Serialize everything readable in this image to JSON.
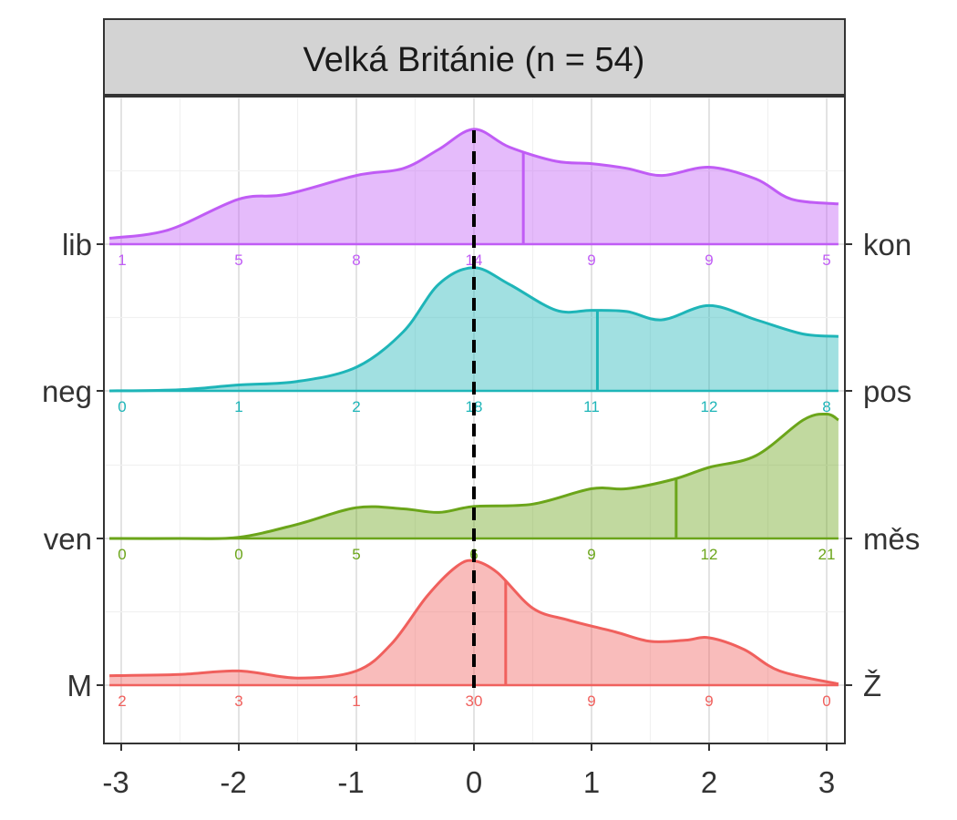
{
  "chart_data": {
    "type": "ridgeline-density",
    "title": "Velká Británie (n = 54)",
    "x_ticks": [
      -3,
      -2,
      -1,
      0,
      1,
      2,
      3
    ],
    "xlim": [
      -3.1,
      3.1
    ],
    "reference_line_x": 0,
    "series": [
      {
        "left_label": "M",
        "right_label": "Ž",
        "color": "#F0605D",
        "mean": 0.27,
        "counts": [
          {
            "x": -3,
            "n": "2"
          },
          {
            "x": -2,
            "n": "3"
          },
          {
            "x": -1,
            "n": "1"
          },
          {
            "x": 0,
            "n": "30"
          },
          {
            "x": 1,
            "n": "9"
          },
          {
            "x": 2,
            "n": "9"
          },
          {
            "x": 3,
            "n": "0"
          }
        ],
        "density": [
          [
            -3.1,
            0.08
          ],
          [
            -2.5,
            0.09
          ],
          [
            -2,
            0.12
          ],
          [
            -1.5,
            0.06
          ],
          [
            -1,
            0.12
          ],
          [
            -0.7,
            0.35
          ],
          [
            -0.4,
            0.75
          ],
          [
            -0.15,
            1.0
          ],
          [
            0,
            1.05
          ],
          [
            0.2,
            0.95
          ],
          [
            0.5,
            0.65
          ],
          [
            0.8,
            0.55
          ],
          [
            1.2,
            0.45
          ],
          [
            1.5,
            0.37
          ],
          [
            1.8,
            0.38
          ],
          [
            2,
            0.4
          ],
          [
            2.3,
            0.3
          ],
          [
            2.6,
            0.12
          ],
          [
            3.1,
            0.01
          ]
        ]
      },
      {
        "left_label": "ven",
        "right_label": "měs",
        "color": "#6BA51A",
        "mean": 1.72,
        "counts": [
          {
            "x": -3,
            "n": "0"
          },
          {
            "x": -2,
            "n": "0"
          },
          {
            "x": -1,
            "n": "5"
          },
          {
            "x": 0,
            "n": "6"
          },
          {
            "x": 1,
            "n": "9"
          },
          {
            "x": 2,
            "n": "12"
          },
          {
            "x": 3,
            "n": "21"
          }
        ],
        "density": [
          [
            -3.1,
            0.0
          ],
          [
            -2.5,
            0.0
          ],
          [
            -2,
            0.01
          ],
          [
            -1.5,
            0.12
          ],
          [
            -1,
            0.26
          ],
          [
            -0.6,
            0.25
          ],
          [
            -0.3,
            0.22
          ],
          [
            0,
            0.27
          ],
          [
            0.5,
            0.29
          ],
          [
            1,
            0.42
          ],
          [
            1.3,
            0.42
          ],
          [
            1.7,
            0.5
          ],
          [
            2,
            0.6
          ],
          [
            2.4,
            0.7
          ],
          [
            2.8,
            1.0
          ],
          [
            3.0,
            1.05
          ],
          [
            3.1,
            1.0
          ]
        ]
      },
      {
        "left_label": "neg",
        "right_label": "pos",
        "color": "#1EB5B8",
        "mean": 1.05,
        "counts": [
          {
            "x": -3,
            "n": "0"
          },
          {
            "x": -2,
            "n": "1"
          },
          {
            "x": -1,
            "n": "2"
          },
          {
            "x": 0,
            "n": "18"
          },
          {
            "x": 1,
            "n": "11"
          },
          {
            "x": 2,
            "n": "12"
          },
          {
            "x": 3,
            "n": "8"
          }
        ],
        "density": [
          [
            -3.1,
            0.0
          ],
          [
            -2.5,
            0.01
          ],
          [
            -2,
            0.05
          ],
          [
            -1.5,
            0.08
          ],
          [
            -1,
            0.2
          ],
          [
            -0.6,
            0.5
          ],
          [
            -0.3,
            0.9
          ],
          [
            0,
            1.04
          ],
          [
            0.3,
            0.9
          ],
          [
            0.7,
            0.68
          ],
          [
            1,
            0.68
          ],
          [
            1.3,
            0.67
          ],
          [
            1.6,
            0.6
          ],
          [
            2,
            0.72
          ],
          [
            2.4,
            0.6
          ],
          [
            2.8,
            0.48
          ],
          [
            3.1,
            0.46
          ]
        ]
      },
      {
        "left_label": "lib",
        "right_label": "kon",
        "color": "#C05CF5",
        "mean": 0.42,
        "counts": [
          {
            "x": -3,
            "n": "1"
          },
          {
            "x": -2,
            "n": "5"
          },
          {
            "x": -1,
            "n": "8"
          },
          {
            "x": 0,
            "n": "14"
          },
          {
            "x": 1,
            "n": "9"
          },
          {
            "x": 2,
            "n": "9"
          },
          {
            "x": 3,
            "n": "5"
          }
        ],
        "density": [
          [
            -3.1,
            0.05
          ],
          [
            -2.6,
            0.12
          ],
          [
            -2,
            0.38
          ],
          [
            -1.6,
            0.42
          ],
          [
            -1,
            0.58
          ],
          [
            -0.6,
            0.64
          ],
          [
            -0.3,
            0.8
          ],
          [
            0,
            0.97
          ],
          [
            0.3,
            0.82
          ],
          [
            0.7,
            0.7
          ],
          [
            1,
            0.68
          ],
          [
            1.3,
            0.64
          ],
          [
            1.6,
            0.58
          ],
          [
            2,
            0.65
          ],
          [
            2.4,
            0.55
          ],
          [
            2.7,
            0.38
          ],
          [
            3.1,
            0.34
          ]
        ]
      }
    ]
  }
}
